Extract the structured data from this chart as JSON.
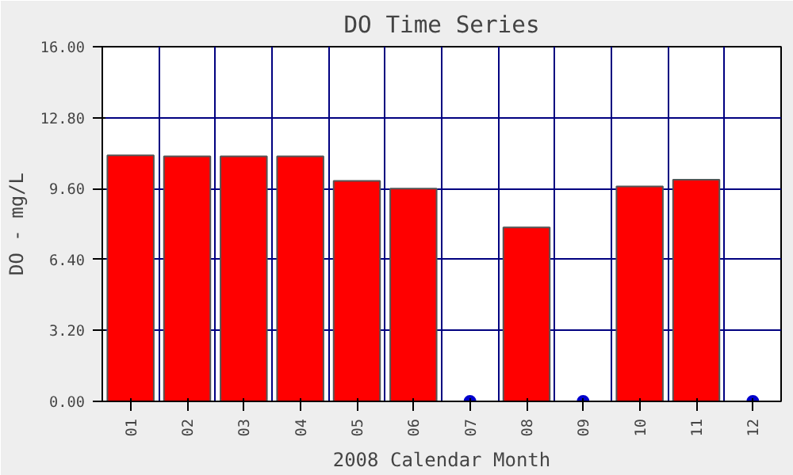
{
  "chart_data": {
    "type": "bar",
    "title": "DO Time Series",
    "xlabel": "2008 Calendar Month",
    "ylabel": "DO - mg/L",
    "categories": [
      "01",
      "02",
      "03",
      "04",
      "05",
      "06",
      "07",
      "08",
      "09",
      "10",
      "11",
      "12"
    ],
    "series": [
      {
        "color": "#ff0000",
        "values": [
          11.1,
          11.05,
          11.05,
          11.05,
          9.95,
          9.6,
          null,
          7.85,
          null,
          9.7,
          10.0,
          null
        ]
      },
      {
        "type": "scatter",
        "color": "#0000cc",
        "x": [
          "07",
          "09",
          "12"
        ],
        "values": [
          0,
          0,
          0
        ]
      }
    ],
    "ylim": [
      0,
      16
    ],
    "yticks": [
      {
        "value": 0,
        "label": "0.00"
      },
      {
        "value": 3.2,
        "label": "3.20"
      },
      {
        "value": 6.4,
        "label": "6.40"
      },
      {
        "value": 9.6,
        "label": "9.60"
      },
      {
        "value": 12.8,
        "label": "12.80"
      },
      {
        "value": 16,
        "label": "16.00"
      }
    ],
    "grid": true,
    "marker": "circle"
  }
}
